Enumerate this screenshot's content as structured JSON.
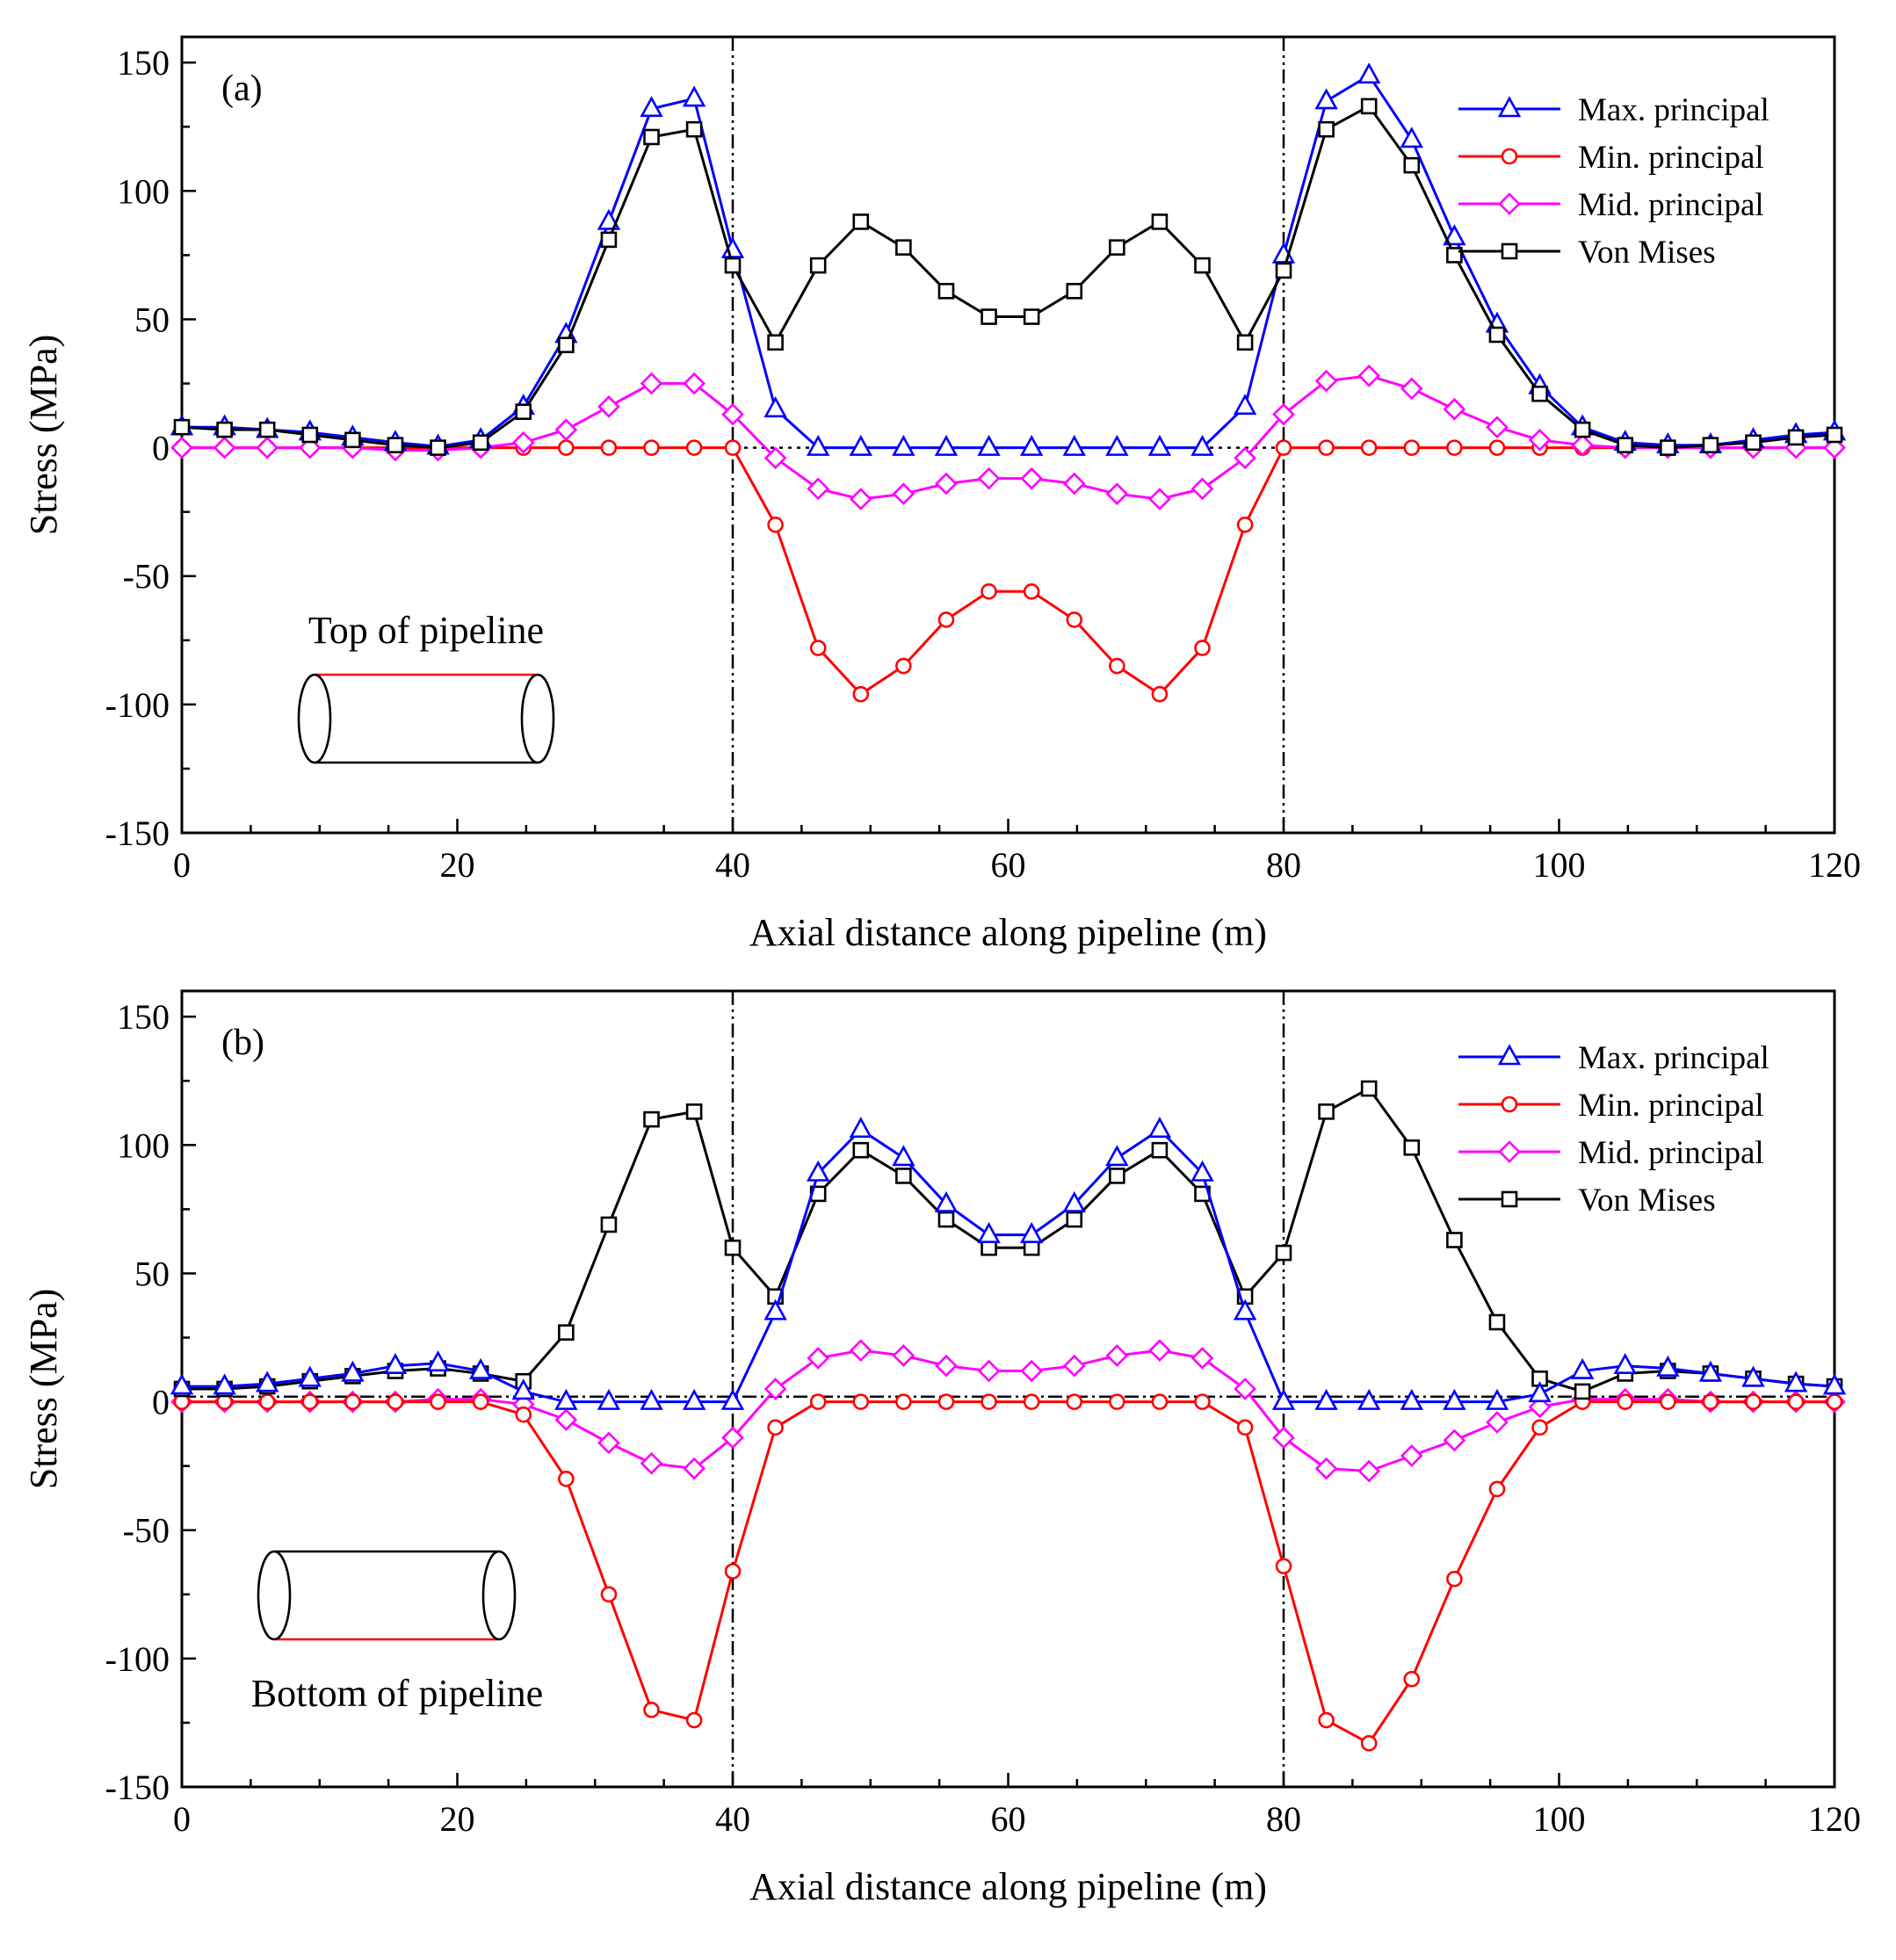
{
  "chart_data": [
    {
      "type": "line",
      "panel_label": "(a)",
      "xlabel": "Axial distance along pipeline (m)",
      "ylabel": "Stress (MPa)",
      "xlim": [
        0,
        120
      ],
      "ylim": [
        -150,
        160
      ],
      "xticks": [
        0,
        20,
        40,
        60,
        80,
        100,
        120
      ],
      "yticks": [
        -150,
        -100,
        -50,
        0,
        50,
        100,
        150
      ],
      "x": [
        0,
        3.1,
        6.2,
        9.3,
        12.4,
        15.5,
        18.6,
        21.7,
        24.8,
        27.9,
        31.0,
        34.1,
        37.2,
        40,
        43.1,
        46.2,
        49.3,
        52.4,
        55.5,
        58.6,
        61.7,
        64.8,
        67.9,
        71.0,
        74.1,
        77.2,
        80,
        83.1,
        86.2,
        89.3,
        92.4,
        95.5,
        98.6,
        101.7,
        104.8,
        107.9,
        111.0,
        114.1,
        117.2,
        120
      ],
      "series": [
        {
          "name": "Max. principal",
          "color": "#0000ff",
          "marker": "triangle",
          "values": [
            8,
            8,
            7,
            6,
            4,
            2,
            0.5,
            3,
            16,
            44,
            88,
            132,
            136,
            77,
            15,
            0,
            0,
            0,
            0,
            0,
            0,
            0,
            0,
            0,
            0,
            16,
            75,
            135,
            145,
            120,
            82,
            48,
            24,
            8,
            2,
            1,
            1,
            3,
            5,
            6
          ]
        },
        {
          "name": "Min. principal",
          "color": "#ff0000",
          "marker": "circle",
          "values": [
            0,
            0,
            0,
            0,
            0,
            0,
            0,
            0,
            0,
            0,
            0,
            0,
            0,
            0,
            -30,
            -78,
            -96,
            -85,
            -67,
            -56,
            -56,
            -67,
            -85,
            -96,
            -78,
            -30,
            0,
            0,
            0,
            0,
            0,
            0,
            0,
            0,
            0,
            0,
            0,
            0,
            0,
            0
          ]
        },
        {
          "name": "Mid. principal",
          "color": "#ff00ff",
          "marker": "diamond",
          "values": [
            0,
            0,
            0,
            0,
            0,
            -1,
            -1,
            0,
            2,
            7,
            16,
            25,
            25,
            13,
            -4,
            -16,
            -20,
            -18,
            -14,
            -12,
            -12,
            -14,
            -18,
            -20,
            -16,
            -4,
            13,
            26,
            28,
            23,
            15,
            8,
            3,
            1,
            0,
            0,
            0,
            0,
            0,
            0
          ]
        },
        {
          "name": "Von Mises",
          "color": "#000000",
          "marker": "square",
          "values": [
            8,
            7,
            7,
            5,
            3,
            1,
            0,
            2,
            14,
            40,
            81,
            121,
            124,
            71,
            41,
            71,
            88,
            78,
            61,
            51,
            51,
            61,
            78,
            88,
            71,
            41,
            69,
            124,
            133,
            110,
            75,
            44,
            21,
            7,
            1,
            0,
            1,
            2,
            4,
            5
          ]
        }
      ],
      "inset_label": "Top of pipeline",
      "reference_lines": {
        "vertical_x": [
          40,
          80
        ],
        "horizontal_y": 0
      },
      "legend_position": "top-right"
    },
    {
      "type": "line",
      "panel_label": "(b)",
      "xlabel": "Axial distance along pipeline (m)",
      "ylabel": "Stress (MPa)",
      "xlim": [
        0,
        120
      ],
      "ylim": [
        -150,
        160
      ],
      "xticks": [
        0,
        20,
        40,
        60,
        80,
        100,
        120
      ],
      "yticks": [
        -150,
        -100,
        -50,
        0,
        50,
        100,
        150
      ],
      "x": [
        0,
        3.1,
        6.2,
        9.3,
        12.4,
        15.5,
        18.6,
        21.7,
        24.8,
        27.9,
        31.0,
        34.1,
        37.2,
        40,
        43.1,
        46.2,
        49.3,
        52.4,
        55.5,
        58.6,
        61.7,
        64.8,
        67.9,
        71.0,
        74.1,
        77.2,
        80,
        83.1,
        86.2,
        89.3,
        92.4,
        95.5,
        98.6,
        101.7,
        104.8,
        107.9,
        111.0,
        114.1,
        117.2,
        120
      ],
      "series": [
        {
          "name": "Max. principal",
          "color": "#0000ff",
          "marker": "triangle",
          "values": [
            6,
            6,
            7,
            9,
            11,
            14,
            15,
            12,
            4,
            0,
            0,
            0,
            0,
            0,
            35,
            89,
            106,
            95,
            77,
            65,
            65,
            77,
            95,
            106,
            89,
            35,
            0,
            0,
            0,
            0,
            0,
            0,
            3,
            12,
            14,
            13,
            11,
            9,
            7,
            6
          ]
        },
        {
          "name": "Min. principal",
          "color": "#ff0000",
          "marker": "circle",
          "values": [
            0,
            0,
            0,
            0,
            0,
            0,
            0,
            0,
            -5,
            -30,
            -75,
            -120,
            -124,
            -66,
            -10,
            0,
            0,
            0,
            0,
            0,
            0,
            0,
            0,
            0,
            0,
            -10,
            -64,
            -124,
            -133,
            -108,
            -69,
            -34,
            -10,
            0,
            0,
            0,
            0,
            0,
            0,
            0
          ]
        },
        {
          "name": "Mid. principal",
          "color": "#ff00ff",
          "marker": "diamond",
          "values": [
            0,
            0,
            0,
            0,
            0,
            0,
            1,
            1,
            -1,
            -7,
            -16,
            -24,
            -26,
            -14,
            5,
            17,
            20,
            18,
            14,
            12,
            12,
            14,
            18,
            20,
            17,
            5,
            -14,
            -26,
            -27,
            -21,
            -15,
            -8,
            -2,
            1,
            1,
            1,
            0,
            0,
            0,
            0
          ]
        },
        {
          "name": "Von Mises",
          "color": "#000000",
          "marker": "square",
          "values": [
            5,
            5,
            6,
            8,
            10,
            12,
            13,
            11,
            8,
            27,
            69,
            110,
            113,
            60,
            41,
            81,
            98,
            88,
            71,
            60,
            60,
            71,
            88,
            98,
            81,
            41,
            58,
            113,
            122,
            99,
            63,
            31,
            9,
            4,
            11,
            12,
            11,
            9,
            7,
            6
          ]
        }
      ],
      "inset_label": "Bottom of pipeline",
      "reference_lines": {
        "vertical_x": [
          40,
          80
        ],
        "horizontal_y": 2
      },
      "legend_position": "top-right"
    }
  ]
}
